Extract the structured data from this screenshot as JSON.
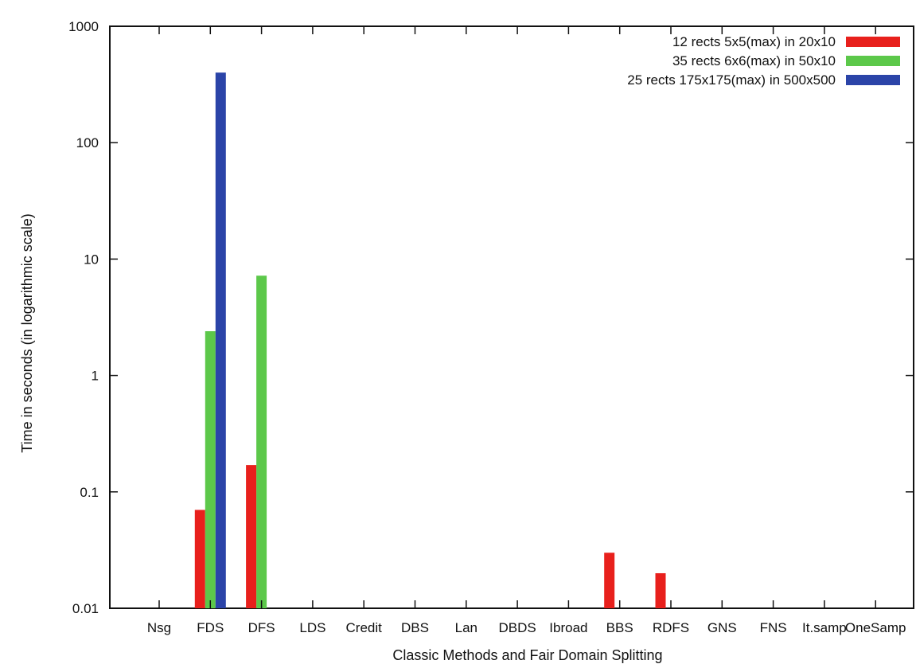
{
  "chart_data": {
    "type": "bar",
    "xlabel": "Classic Methods and Fair Domain Splitting",
    "ylabel": "Time in seconds (in logarithmic scale)",
    "y_scale": "log",
    "ylim": [
      0.01,
      1000
    ],
    "y_ticks": [
      "0.01",
      "0.1",
      "1",
      "10",
      "100",
      "1000"
    ],
    "grid": false,
    "legend_position": "top-right",
    "categories": [
      "Nsg",
      "FDS",
      "DFS",
      "LDS",
      "Credit",
      "DBS",
      "Lan",
      "DBDS",
      "Ibroad",
      "BBS",
      "RDFS",
      "GNS",
      "FNS",
      "It.samp",
      "OneSamp"
    ],
    "series": [
      {
        "name": "12 rects 5x5(max) in 20x10",
        "color": "#e8201c",
        "values": [
          null,
          0.07,
          0.17,
          null,
          null,
          null,
          null,
          null,
          null,
          0.03,
          0.02,
          null,
          null,
          null,
          null
        ]
      },
      {
        "name": "35 rects 6x6(max) in 50x10",
        "color": "#5cc84a",
        "values": [
          null,
          2.4,
          7.2,
          null,
          null,
          null,
          null,
          null,
          null,
          null,
          null,
          null,
          null,
          null,
          null
        ]
      },
      {
        "name": "25 rects 175x175(max) in 500x500",
        "color": "#2b44a8",
        "values": [
          null,
          400,
          null,
          null,
          null,
          null,
          null,
          null,
          null,
          null,
          null,
          null,
          null,
          null,
          null
        ]
      }
    ]
  }
}
